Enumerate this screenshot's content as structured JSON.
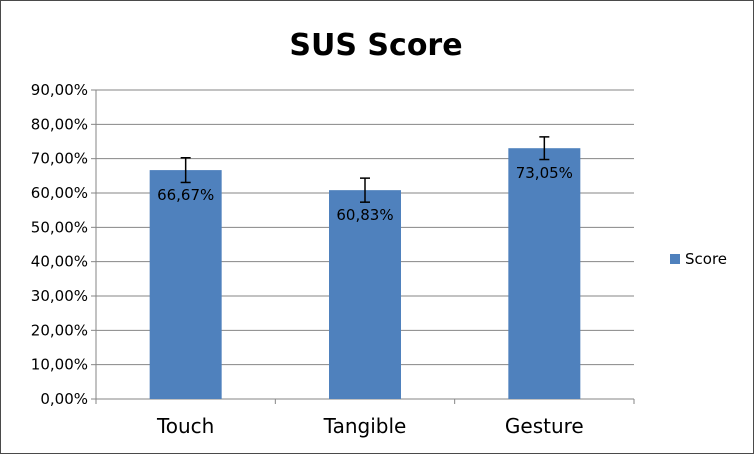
{
  "chart_data": {
    "type": "bar",
    "title": "SUS Score",
    "categories": [
      "Touch",
      "Tangible",
      "Gesture"
    ],
    "series": [
      {
        "name": "Score",
        "values": [
          66.67,
          60.83,
          73.05
        ],
        "value_labels": [
          "66,67%",
          "60,83%",
          "73,05%"
        ],
        "error": [
          3.6,
          3.5,
          3.3
        ],
        "color": "#4f81bd"
      }
    ],
    "ylim": [
      0,
      90
    ],
    "yticks": [
      0,
      10,
      20,
      30,
      40,
      50,
      60,
      70,
      80,
      90
    ],
    "ytick_labels": [
      "0,00%",
      "10,00%",
      "20,00%",
      "30,00%",
      "40,00%",
      "50,00%",
      "60,00%",
      "70,00%",
      "80,00%",
      "90,00%"
    ],
    "grid": true,
    "legend": "right"
  }
}
